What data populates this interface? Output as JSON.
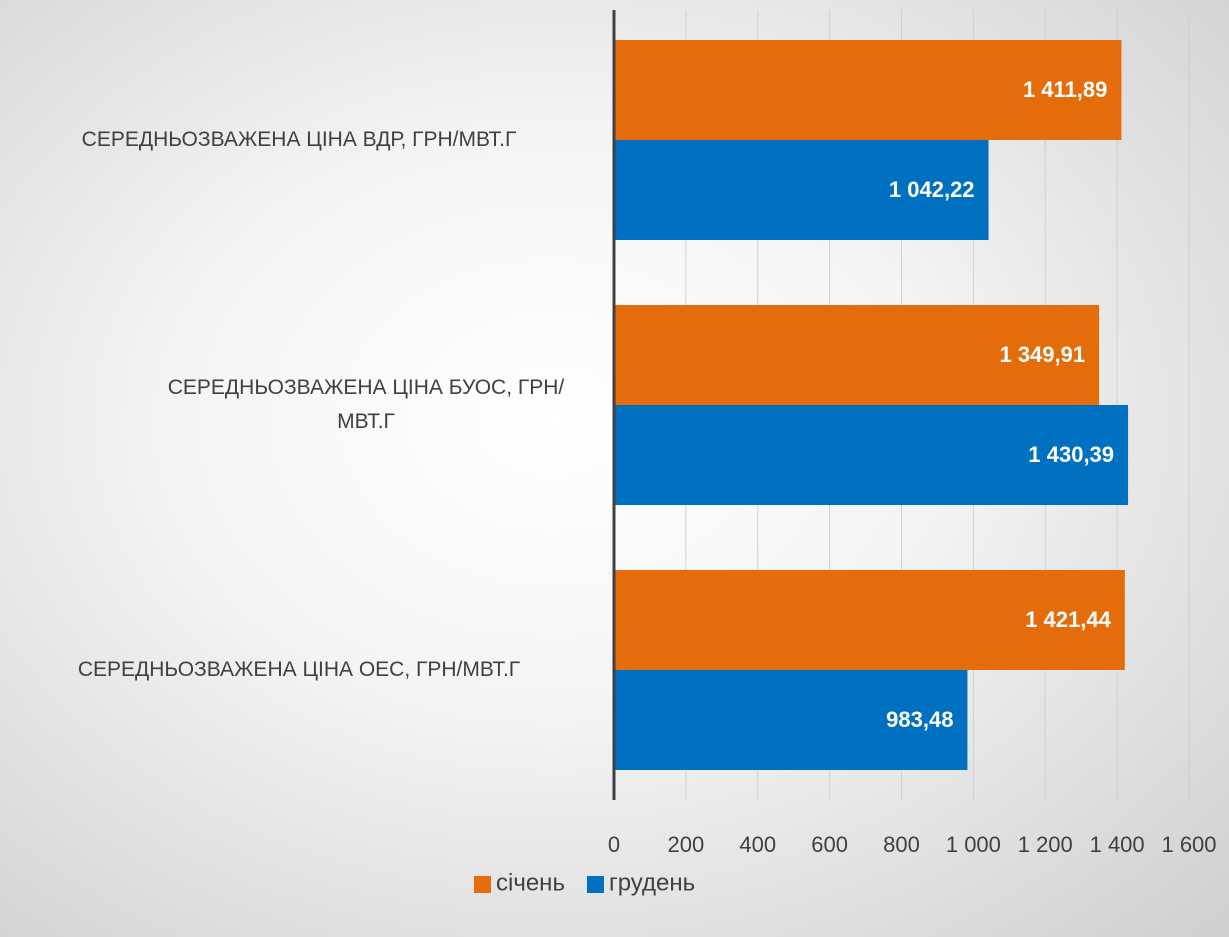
{
  "chart_data": {
    "type": "hbar",
    "categories": [
      "СЕРЕДНЬОЗВАЖЕНА ЦІНА ВДР, ГРН/МВТ.Г",
      "СЕРЕДНЬОЗВАЖЕНА ЦІНА БУОС, ГРН/МВТ.Г",
      "СЕРЕДНЬОЗВАЖЕНА ЦІНА ОЕС, ГРН/МВТ.Г"
    ],
    "series": [
      {
        "name": "січень",
        "color": "#e46c0a",
        "values": [
          1411.89,
          1349.91,
          1421.44
        ],
        "value_labels": [
          "1 411,89",
          "1 349,91",
          "1 421,44"
        ]
      },
      {
        "name": "грудень",
        "color": "#0070c0",
        "values": [
          1042.22,
          1430.39,
          983.48
        ],
        "value_labels": [
          "1 042,22",
          "1 430,39",
          "983,48"
        ]
      }
    ],
    "xlim": [
      0,
      1600
    ],
    "xticks": [
      0,
      200,
      400,
      600,
      800,
      {
        "value": 1000,
        "label": "1 000"
      },
      {
        "value": 1200,
        "label": "1 200"
      },
      {
        "value": 1400,
        "label": "1 400"
      },
      {
        "value": 1600,
        "label": "1 600"
      }
    ],
    "grid": true,
    "legend": "bottom"
  }
}
